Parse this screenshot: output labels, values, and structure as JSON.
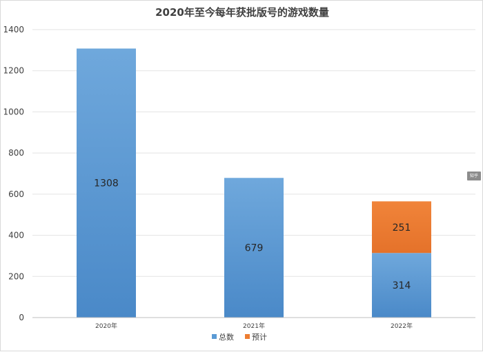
{
  "chart_data": {
    "type": "bar",
    "stacked": true,
    "title": "2020年至今每年获批版号的游戏数量",
    "categories": [
      "2020年",
      "2021年",
      "2022年"
    ],
    "series": [
      {
        "name": "总数",
        "values": [
          1308,
          679,
          314
        ],
        "color": "#5b9bd5"
      },
      {
        "name": "预计",
        "values": [
          0,
          0,
          251
        ],
        "color": "#ed7d31"
      }
    ],
    "ylim": [
      0,
      1400
    ],
    "yticks": [
      0,
      200,
      400,
      600,
      800,
      1000,
      1200,
      1400
    ],
    "grid": true,
    "legend_position": "bottom"
  },
  "badge": {
    "text": "知乎"
  }
}
